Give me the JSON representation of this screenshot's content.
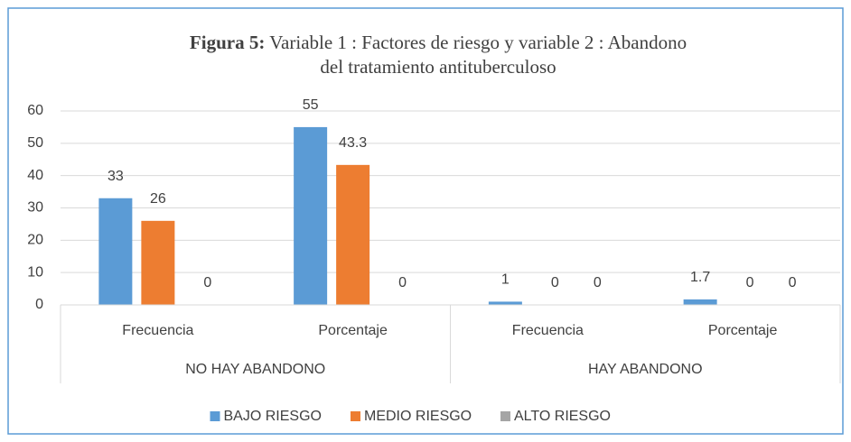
{
  "chart_data": {
    "type": "bar",
    "title_prefix": "Figura 5:",
    "title_lines": [
      "Variable 1 : Factores de riesgo y variable 2 : Abandono",
      "del tratamiento antituberculoso"
    ],
    "categories": [
      "Frecuencia",
      "Porcentaje",
      "Frecuencia",
      "Porcentaje"
    ],
    "groups": [
      "NO HAY ABANDONO",
      "HAY ABANDONO"
    ],
    "series": [
      {
        "name": "BAJO RIESGO",
        "color": "#5b9bd5",
        "values": [
          33,
          55,
          1,
          1.7
        ]
      },
      {
        "name": "MEDIO RIESGO",
        "color": "#ed7d31",
        "values": [
          26,
          43.3,
          0,
          0
        ]
      },
      {
        "name": "ALTO RIESGO",
        "color": "#a5a5a5",
        "values": [
          0,
          0,
          0,
          0
        ]
      }
    ],
    "ylim": [
      0,
      60
    ],
    "yticks": [
      0,
      10,
      20,
      30,
      40,
      50,
      60
    ],
    "grid": true,
    "legend": "bottom"
  }
}
